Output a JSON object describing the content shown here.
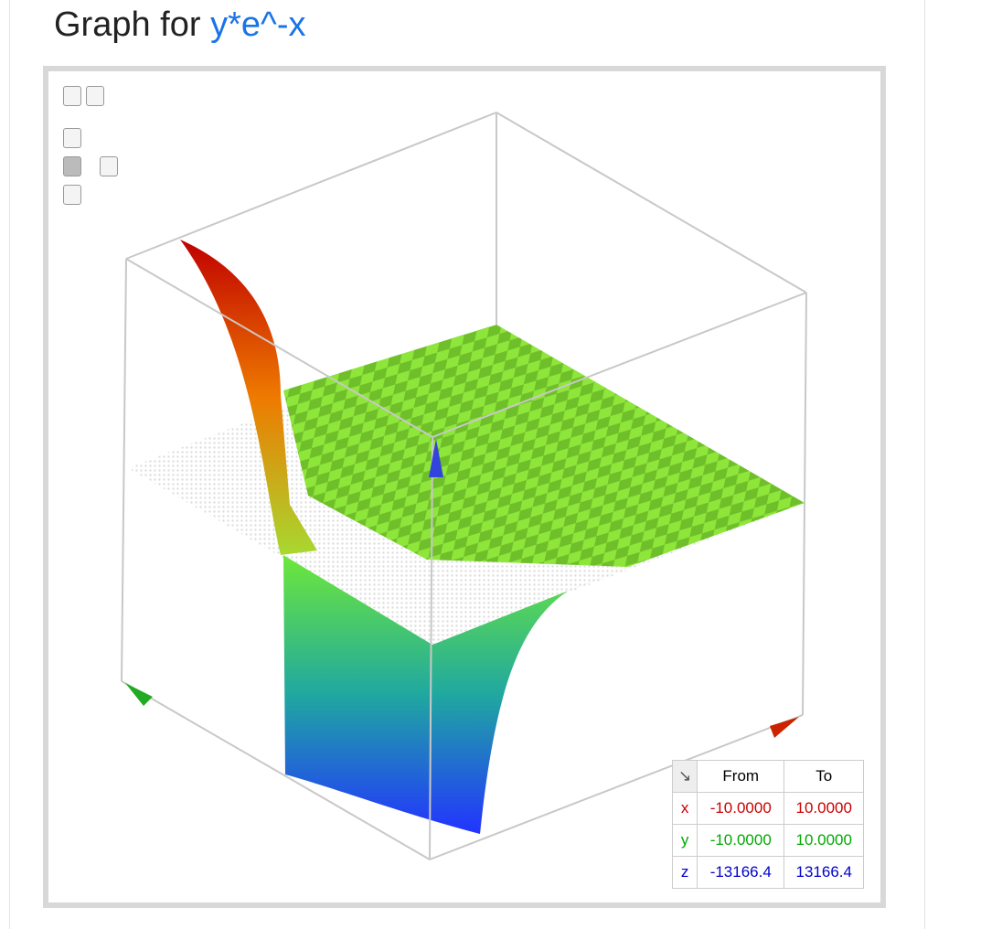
{
  "header": {
    "prefix": "Graph for",
    "query": "y*e^-x"
  },
  "range_table": {
    "columns": [
      "From",
      "To"
    ],
    "rows": [
      {
        "axis": "x",
        "from": "-10.0000",
        "to": "10.0000"
      },
      {
        "axis": "y",
        "from": "-10.0000",
        "to": "10.0000"
      },
      {
        "axis": "z",
        "from": "-13166.4",
        "to": "13166.4"
      }
    ]
  }
}
